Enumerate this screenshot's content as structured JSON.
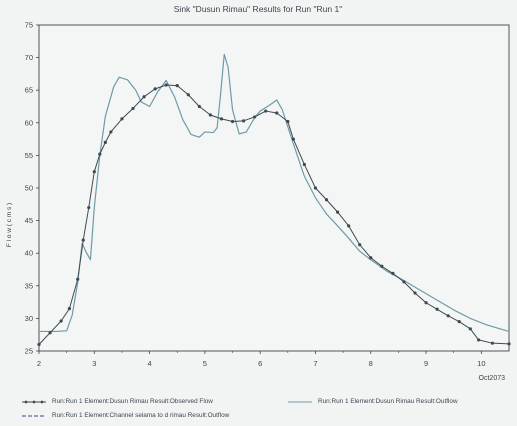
{
  "chart_data": {
    "type": "line",
    "title": "Sink \"Dusun Rimau\" Results for Run \"Run 1\"",
    "ylabel": "F l o w ( c m s )",
    "xlabel": "",
    "xlim": [
      2,
      10.5
    ],
    "ylim": [
      25,
      75
    ],
    "x_ticks": [
      "2",
      "3",
      "4",
      "5",
      "6",
      "7",
      "8",
      "9",
      "10"
    ],
    "x_tick_values": [
      2,
      3,
      4,
      5,
      6,
      7,
      8,
      9,
      10
    ],
    "x_axis_note": "Oct2073",
    "y_ticks": [
      "25",
      "30",
      "35",
      "40",
      "45",
      "50",
      "55",
      "60",
      "65",
      "70",
      "75"
    ],
    "y_tick_values": [
      25,
      30,
      35,
      40,
      45,
      50,
      55,
      60,
      65,
      70,
      75
    ],
    "grid": false,
    "legend_placement": "bottom",
    "series": [
      {
        "name": "Run:Run 1 Element:Dusun Rimau Result:Observed Flow",
        "style": "line-dots",
        "color": "#3d4a52",
        "points": [
          [
            2.0,
            26.0
          ],
          [
            2.2,
            27.8
          ],
          [
            2.4,
            29.6
          ],
          [
            2.55,
            31.5
          ],
          [
            2.7,
            36.0
          ],
          [
            2.8,
            42.0
          ],
          [
            2.9,
            47.0
          ],
          [
            3.0,
            52.5
          ],
          [
            3.1,
            55.2
          ],
          [
            3.2,
            57.0
          ],
          [
            3.3,
            58.6
          ],
          [
            3.5,
            60.6
          ],
          [
            3.7,
            62.2
          ],
          [
            3.9,
            64.0
          ],
          [
            4.1,
            65.2
          ],
          [
            4.3,
            65.8
          ],
          [
            4.5,
            65.7
          ],
          [
            4.7,
            64.3
          ],
          [
            4.9,
            62.5
          ],
          [
            5.1,
            61.2
          ],
          [
            5.3,
            60.6
          ],
          [
            5.5,
            60.2
          ],
          [
            5.7,
            60.3
          ],
          [
            5.9,
            60.9
          ],
          [
            6.1,
            61.8
          ],
          [
            6.3,
            61.5
          ],
          [
            6.5,
            60.2
          ],
          [
            6.6,
            57.5
          ],
          [
            6.8,
            53.6
          ],
          [
            7.0,
            50.0
          ],
          [
            7.2,
            48.2
          ],
          [
            7.4,
            46.3
          ],
          [
            7.6,
            44.2
          ],
          [
            7.8,
            41.3
          ],
          [
            8.0,
            39.3
          ],
          [
            8.2,
            38.0
          ],
          [
            8.4,
            36.9
          ],
          [
            8.6,
            35.6
          ],
          [
            8.8,
            33.9
          ],
          [
            9.0,
            32.4
          ],
          [
            9.2,
            31.4
          ],
          [
            9.4,
            30.4
          ],
          [
            9.6,
            29.5
          ],
          [
            9.8,
            28.4
          ],
          [
            9.95,
            26.7
          ],
          [
            10.2,
            26.2
          ],
          [
            10.5,
            26.1
          ]
        ]
      },
      {
        "name": "Run:Run 1 Element:Dusun Rimau Result:Outflow",
        "style": "line",
        "color": "#6e9aa8",
        "points": [
          [
            2.0,
            28.0
          ],
          [
            2.3,
            28.0
          ],
          [
            2.5,
            28.1
          ],
          [
            2.6,
            30.5
          ],
          [
            2.7,
            35.5
          ],
          [
            2.78,
            41.5
          ],
          [
            2.85,
            40.2
          ],
          [
            2.93,
            39.0
          ],
          [
            3.0,
            47.0
          ],
          [
            3.1,
            55.0
          ],
          [
            3.2,
            61.0
          ],
          [
            3.35,
            65.5
          ],
          [
            3.45,
            67.0
          ],
          [
            3.6,
            66.6
          ],
          [
            3.75,
            65.0
          ],
          [
            3.85,
            63.2
          ],
          [
            4.0,
            62.5
          ],
          [
            4.15,
            64.8
          ],
          [
            4.3,
            66.5
          ],
          [
            4.45,
            64.0
          ],
          [
            4.6,
            60.5
          ],
          [
            4.75,
            58.2
          ],
          [
            4.9,
            57.8
          ],
          [
            5.0,
            58.6
          ],
          [
            5.15,
            58.5
          ],
          [
            5.22,
            59.2
          ],
          [
            5.28,
            64.0
          ],
          [
            5.35,
            70.5
          ],
          [
            5.42,
            68.5
          ],
          [
            5.5,
            62.0
          ],
          [
            5.62,
            58.3
          ],
          [
            5.75,
            58.6
          ],
          [
            5.9,
            60.8
          ],
          [
            6.0,
            61.8
          ],
          [
            6.15,
            62.6
          ],
          [
            6.3,
            63.5
          ],
          [
            6.4,
            62.0
          ],
          [
            6.6,
            56.8
          ],
          [
            6.8,
            51.8
          ],
          [
            7.0,
            48.5
          ],
          [
            7.2,
            46.0
          ],
          [
            7.4,
            44.2
          ],
          [
            7.6,
            42.3
          ],
          [
            7.8,
            40.3
          ],
          [
            8.0,
            39.0
          ],
          [
            8.3,
            37.2
          ],
          [
            8.6,
            35.8
          ],
          [
            8.9,
            34.3
          ],
          [
            9.2,
            32.8
          ],
          [
            9.5,
            31.3
          ],
          [
            9.8,
            30.0
          ],
          [
            10.1,
            29.0
          ],
          [
            10.5,
            28.0
          ]
        ]
      },
      {
        "name": "Run:Run 1 Element:Channel  selama to d rimau Result:Outflow",
        "style": "dashed",
        "color": "#2f4a78",
        "points": []
      }
    ]
  },
  "colors": {
    "background": "#f2f4f3",
    "plot_background": "#f4f6f5",
    "axis": "#3b464c"
  }
}
